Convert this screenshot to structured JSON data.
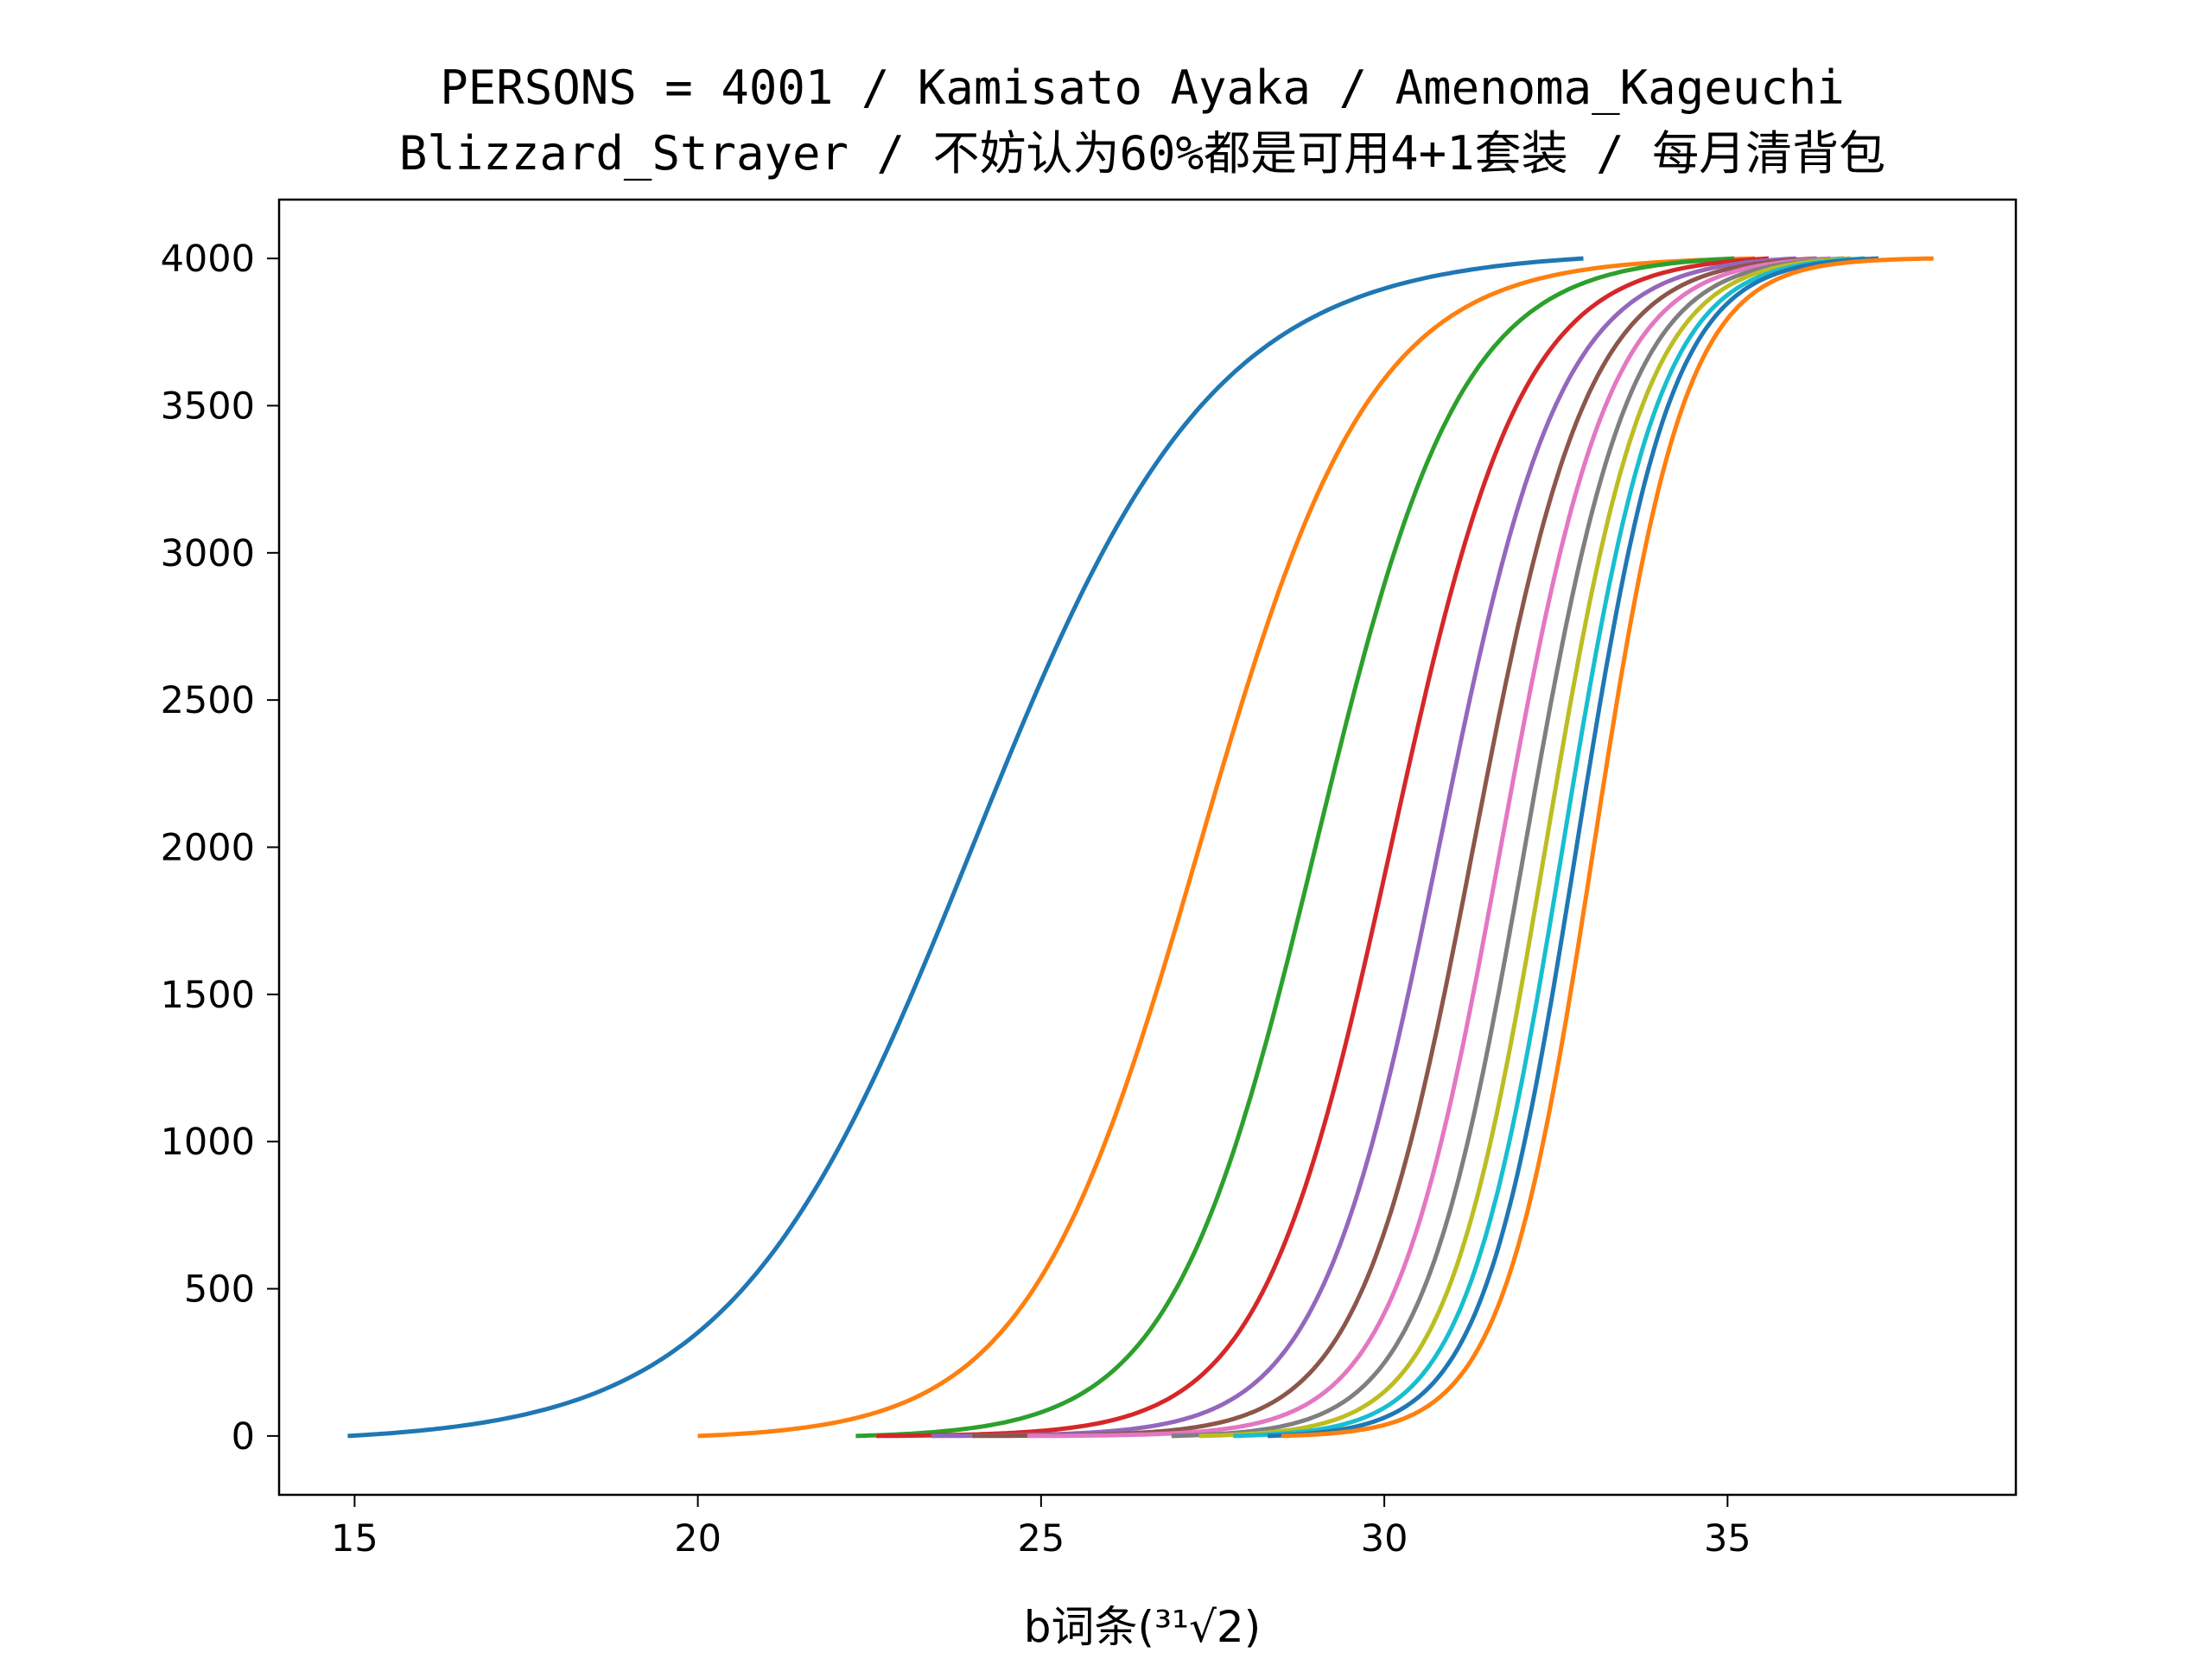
{
  "chart_data": {
    "type": "line",
    "title_lines": [
      "PERSONS = 4001 / Kamisato Ayaka / Amenoma_Kageuchi",
      "Blizzard_Strayer / 不妨认为60%都是可用4+1套装 / 每月清背包"
    ],
    "xlabel": "b词条(³¹√2)",
    "ylabel": "",
    "xlim": [
      13.9,
      39.2
    ],
    "ylim": [
      -200,
      4200
    ],
    "xticks": [
      15,
      20,
      25,
      30,
      35
    ],
    "yticks": [
      0,
      500,
      1000,
      1500,
      2000,
      2500,
      3000,
      3500,
      4000
    ],
    "grid": false,
    "legend": "none",
    "y_max": 4000,
    "series": [
      {
        "color": "#1f77b4",
        "x_start": 14.9,
        "x_end": 32.9,
        "x_median": 24.0,
        "spread": 1.75
      },
      {
        "color": "#ff7f0e",
        "x_start": 20.0,
        "x_end": 35.4,
        "x_median": 27.3,
        "spread": 1.25
      },
      {
        "color": "#2ca02c",
        "x_start": 22.3,
        "x_end": 35.1,
        "x_median": 29.0,
        "spread": 1.05
      },
      {
        "color": "#d62728",
        "x_start": 22.6,
        "x_end": 35.6,
        "x_median": 30.1,
        "spread": 0.95
      },
      {
        "color": "#9467bd",
        "x_start": 23.4,
        "x_end": 36.0,
        "x_median": 30.8,
        "spread": 0.88
      },
      {
        "color": "#8c564b",
        "x_start": 24.0,
        "x_end": 36.3,
        "x_median": 31.3,
        "spread": 0.83
      },
      {
        "color": "#e377c2",
        "x_start": 24.8,
        "x_end": 36.5,
        "x_median": 31.7,
        "spread": 0.79
      },
      {
        "color": "#7f7f7f",
        "x_start": 26.9,
        "x_end": 36.7,
        "x_median": 32.05,
        "spread": 0.76
      },
      {
        "color": "#bcbd22",
        "x_start": 27.3,
        "x_end": 36.8,
        "x_median": 32.35,
        "spread": 0.73
      },
      {
        "color": "#17becf",
        "x_start": 27.8,
        "x_end": 37.0,
        "x_median": 32.6,
        "spread": 0.71
      },
      {
        "color": "#1f77b4",
        "x_start": 28.3,
        "x_end": 37.2,
        "x_median": 32.8,
        "spread": 0.69
      },
      {
        "color": "#ff7f0e",
        "x_start": 28.5,
        "x_end": 38.0,
        "x_median": 33.05,
        "spread": 0.67
      }
    ]
  }
}
